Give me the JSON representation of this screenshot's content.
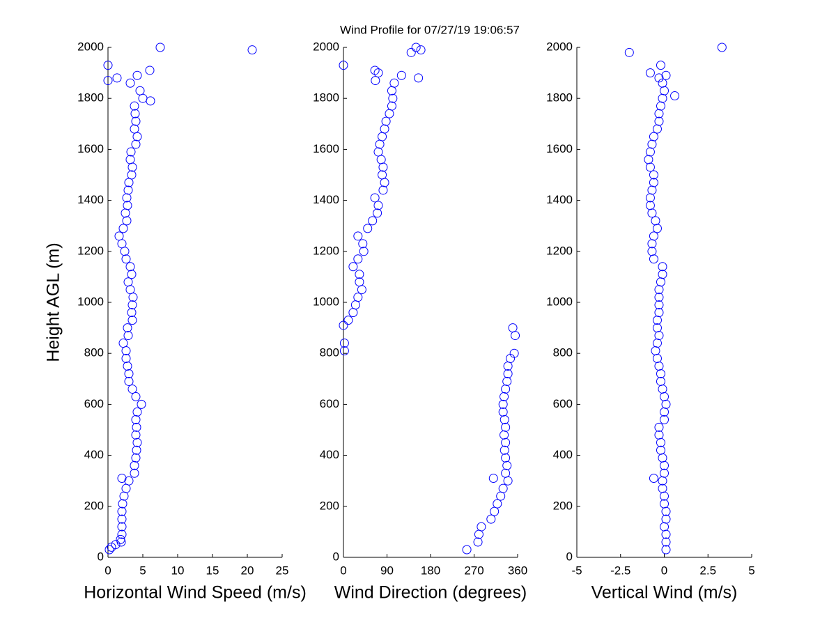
{
  "title": "Wind Profile for  07/27/19 19:06:57",
  "chart_data": [
    {
      "type": "scatter",
      "xlabel": "Horizontal Wind Speed (m/s)",
      "ylabel": "Height AGL (m)",
      "color": "#0000ff",
      "xlim": [
        0,
        25
      ],
      "xticks": [
        0,
        5,
        10,
        15,
        20,
        25
      ],
      "ylim": [
        0,
        2000
      ],
      "yticks": [
        0,
        200,
        400,
        600,
        800,
        1000,
        1200,
        1400,
        1600,
        1800,
        2000
      ],
      "x": [
        0.2,
        1.9,
        2.0,
        2.0,
        2.0,
        2.0,
        2.1,
        2.3,
        2.6,
        3.0,
        3.8,
        3.8,
        4.0,
        4.1,
        4.2,
        4.0,
        4.1,
        4.0,
        4.2,
        4.8,
        4.0,
        3.5,
        3.0,
        3.0,
        2.8,
        2.6,
        2.6,
        2.2,
        2.9,
        2.8,
        3.5,
        3.4,
        3.5,
        3.6,
        3.2,
        2.9,
        3.4,
        3.2,
        2.6,
        2.4,
        2.0,
        1.6,
        2.2,
        2.7,
        2.5,
        2.8,
        2.7,
        2.9,
        3.0,
        3.4,
        3.5,
        3.2,
        3.3,
        4.0,
        4.2,
        3.8,
        4.0,
        3.9,
        3.8,
        5.0,
        4.6,
        3.2,
        4.2,
        7.5,
        20.7,
        6.0,
        6.1,
        1.3,
        0.0,
        0.0,
        2.0,
        0.5,
        1.1,
        1.8
      ],
      "values": [
        30,
        60,
        90,
        120,
        150,
        180,
        210,
        240,
        270,
        300,
        330,
        360,
        390,
        420,
        450,
        480,
        510,
        540,
        570,
        600,
        630,
        660,
        690,
        720,
        750,
        780,
        810,
        840,
        870,
        900,
        930,
        960,
        990,
        1020,
        1050,
        1080,
        1110,
        1140,
        1170,
        1200,
        1230,
        1260,
        1290,
        1320,
        1350,
        1380,
        1410,
        1440,
        1470,
        1500,
        1530,
        1560,
        1590,
        1620,
        1650,
        1680,
        1710,
        1740,
        1770,
        1800,
        1830,
        1860,
        1890,
        2000,
        1990,
        1910,
        1790,
        1880,
        1870,
        1930,
        310,
        40,
        50,
        70
      ]
    },
    {
      "type": "scatter",
      "xlabel": "Wind Direction (degrees)",
      "color": "#0000ff",
      "xlim": [
        0,
        360
      ],
      "xticks": [
        0,
        90,
        180,
        270,
        360
      ],
      "ylim": [
        0,
        2000
      ],
      "yticks": [
        0,
        200,
        400,
        600,
        800,
        1000,
        1200,
        1400,
        1600,
        1800,
        2000
      ],
      "x": [
        255,
        278,
        280,
        285,
        305,
        312,
        318,
        325,
        330,
        340,
        335,
        338,
        335,
        333,
        335,
        332,
        335,
        333,
        330,
        330,
        332,
        335,
        338,
        340,
        340,
        345,
        2,
        2,
        355,
        350,
        10,
        20,
        25,
        30,
        38,
        33,
        33,
        20,
        30,
        42,
        40,
        30,
        50,
        60,
        70,
        72,
        65,
        82,
        85,
        80,
        82,
        78,
        72,
        75,
        80,
        85,
        88,
        95,
        100,
        102,
        100,
        105,
        120,
        353,
        0,
        0,
        65,
        72,
        66,
        155,
        140,
        150,
        160,
        310
      ],
      "values": [
        30,
        60,
        90,
        120,
        150,
        180,
        210,
        240,
        270,
        300,
        330,
        360,
        390,
        420,
        450,
        480,
        510,
        540,
        570,
        600,
        630,
        660,
        690,
        720,
        750,
        780,
        810,
        840,
        870,
        900,
        930,
        960,
        990,
        1020,
        1050,
        1080,
        1110,
        1140,
        1170,
        1200,
        1230,
        1260,
        1290,
        1320,
        1350,
        1380,
        1410,
        1440,
        1470,
        1500,
        1530,
        1560,
        1590,
        1620,
        1650,
        1680,
        1710,
        1740,
        1770,
        1800,
        1830,
        1860,
        1890,
        800,
        910,
        1930,
        1910,
        1900,
        1870,
        1880,
        1980,
        2000,
        1990,
        310
      ]
    },
    {
      "type": "scatter",
      "xlabel": "Vertical Wind (m/s)",
      "color": "#0000ff",
      "xlim": [
        -5,
        5
      ],
      "xticks": [
        -5,
        -2.5,
        0,
        2.5,
        5
      ],
      "ylim": [
        0,
        2000
      ],
      "yticks": [
        0,
        200,
        400,
        600,
        800,
        1000,
        1200,
        1400,
        1600,
        1800,
        2000
      ],
      "x": [
        0.1,
        0.1,
        0.1,
        0.0,
        0.1,
        0.1,
        0.0,
        0.0,
        -0.1,
        -0.1,
        0.0,
        0.0,
        -0.1,
        -0.2,
        -0.2,
        -0.3,
        -0.3,
        0.0,
        0.0,
        0.1,
        0.0,
        -0.1,
        -0.2,
        -0.2,
        -0.3,
        -0.4,
        -0.5,
        -0.4,
        -0.3,
        -0.4,
        -0.4,
        -0.3,
        -0.3,
        -0.3,
        -0.3,
        -0.2,
        -0.1,
        -0.1,
        -0.6,
        -0.7,
        -0.7,
        -0.6,
        -0.4,
        -0.5,
        -0.7,
        -0.8,
        -0.8,
        -0.7,
        -0.6,
        -0.6,
        -0.8,
        -0.9,
        -0.8,
        -0.7,
        -0.6,
        -0.4,
        -0.3,
        -0.3,
        -0.2,
        -0.1,
        0.0,
        -0.1,
        0.1,
        -2.0,
        3.3,
        -0.8,
        0.6,
        -0.6,
        -0.2,
        -0.3
      ],
      "values": [
        30,
        60,
        90,
        120,
        150,
        180,
        210,
        240,
        270,
        300,
        330,
        360,
        390,
        420,
        450,
        480,
        510,
        540,
        570,
        600,
        630,
        660,
        690,
        720,
        750,
        780,
        810,
        840,
        870,
        900,
        930,
        960,
        990,
        1020,
        1050,
        1080,
        1110,
        1140,
        1170,
        1200,
        1230,
        1260,
        1290,
        1320,
        1350,
        1380,
        1410,
        1440,
        1470,
        1500,
        1530,
        1560,
        1590,
        1620,
        1650,
        1680,
        1710,
        1740,
        1770,
        1800,
        1830,
        1860,
        1890,
        1980,
        2000,
        1900,
        1810,
        310,
        1930,
        1880
      ]
    }
  ]
}
